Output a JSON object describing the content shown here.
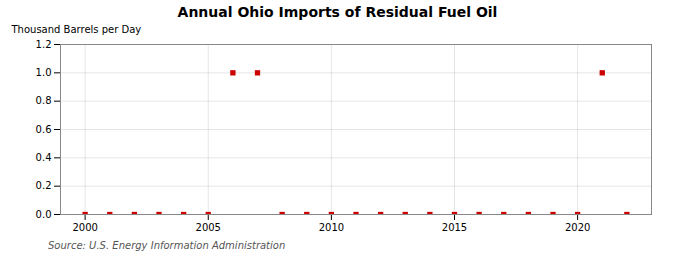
{
  "chart_data": {
    "type": "scatter",
    "title": "Annual Ohio Imports of Residual Fuel Oil",
    "ylabel": "Thousand Barrels per Day",
    "caption": "Source: U.S. Energy Information Administration",
    "x": [
      2000,
      2001,
      2002,
      2003,
      2004,
      2005,
      2006,
      2007,
      2008,
      2009,
      2010,
      2011,
      2012,
      2013,
      2014,
      2015,
      2016,
      2017,
      2018,
      2019,
      2020,
      2021,
      2022
    ],
    "values": [
      0.0,
      0.0,
      0.0,
      0.0,
      0.0,
      0.0,
      1.0,
      1.0,
      0.0,
      0.0,
      0.0,
      0.0,
      0.0,
      0.0,
      0.0,
      0.0,
      0.0,
      0.0,
      0.0,
      0.0,
      0.0,
      1.0,
      0.0
    ],
    "color": "#cc0000",
    "marker": "square",
    "xlim": [
      1999,
      2023
    ],
    "xticks": [
      2000,
      2005,
      2010,
      2015,
      2020
    ],
    "ylim": [
      0,
      1.2
    ],
    "yticks": [
      {
        "value": 0,
        "label": "0.0"
      },
      0.2,
      0.4,
      0.6,
      0.8,
      {
        "value": 1,
        "label": "1.0"
      },
      1.2
    ],
    "grid": true
  }
}
